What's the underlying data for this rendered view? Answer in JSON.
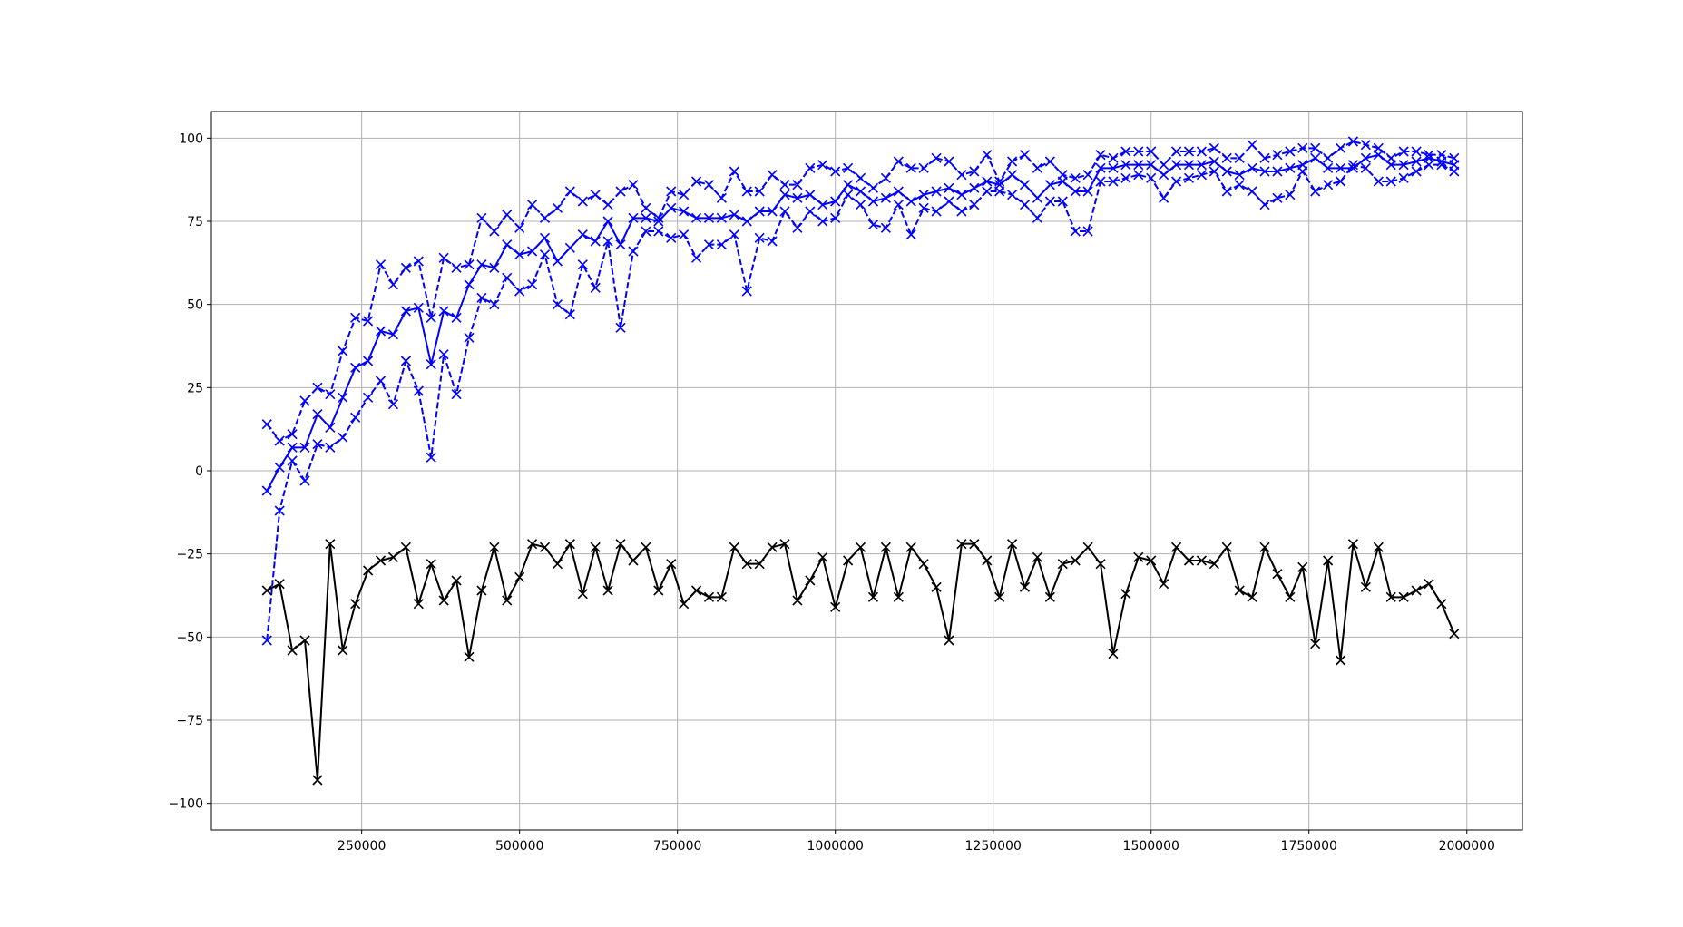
{
  "chart_data": {
    "type": "line",
    "title": "",
    "xlabel": "",
    "ylabel": "",
    "xlim": [
      12000,
      2088000
    ],
    "ylim": [
      -108,
      108
    ],
    "xticks": [
      250000,
      500000,
      750000,
      1000000,
      1250000,
      1500000,
      1750000,
      2000000
    ],
    "yticks": [
      -100,
      -75,
      -50,
      -25,
      0,
      25,
      50,
      75,
      100
    ],
    "grid": true,
    "marker": "x",
    "x": [
      100000,
      120000,
      140000,
      160000,
      180000,
      200000,
      220000,
      240000,
      260000,
      280000,
      300000,
      320000,
      340000,
      360000,
      380000,
      400000,
      420000,
      440000,
      460000,
      480000,
      500000,
      520000,
      540000,
      560000,
      580000,
      600000,
      620000,
      640000,
      660000,
      680000,
      700000,
      720000,
      740000,
      760000,
      780000,
      800000,
      820000,
      840000,
      860000,
      880000,
      900000,
      920000,
      940000,
      960000,
      980000,
      1000000,
      1020000,
      1040000,
      1060000,
      1080000,
      1100000,
      1120000,
      1140000,
      1160000,
      1180000,
      1200000,
      1220000,
      1240000,
      1260000,
      1280000,
      1300000,
      1320000,
      1340000,
      1360000,
      1380000,
      1400000,
      1420000,
      1440000,
      1460000,
      1480000,
      1500000,
      1520000,
      1540000,
      1560000,
      1580000,
      1600000,
      1620000,
      1640000,
      1660000,
      1680000,
      1700000,
      1720000,
      1740000,
      1760000,
      1780000,
      1800000,
      1820000,
      1840000,
      1860000,
      1880000,
      1900000,
      1920000,
      1940000,
      1960000,
      1980000
    ],
    "series": [
      {
        "color": "#0000ff",
        "linestyle": "dashed",
        "values": [
          14,
          9,
          11,
          21,
          25,
          23,
          36,
          46,
          45,
          62,
          56,
          61,
          63,
          46,
          64,
          61,
          62,
          76,
          72,
          77,
          73,
          80,
          76,
          79,
          84,
          81,
          83,
          80,
          84,
          86,
          79,
          76,
          84,
          83,
          87,
          86,
          82,
          90,
          84,
          84,
          89,
          86,
          86,
          91,
          92,
          90,
          91,
          88,
          85,
          88,
          93,
          91,
          91,
          94,
          93,
          89,
          90,
          95,
          87,
          93,
          95,
          91,
          93,
          89,
          88,
          89,
          95,
          94,
          96,
          96,
          96,
          92,
          96,
          96,
          96,
          97,
          94,
          94,
          98,
          94,
          95,
          96,
          97,
          97,
          94,
          97,
          99,
          98,
          97,
          94,
          96,
          96,
          95,
          95,
          94
        ]
      },
      {
        "color": "#0000ff",
        "linestyle": "solid",
        "values": [
          -6,
          1,
          7,
          7,
          17,
          13,
          22,
          31,
          33,
          42,
          41,
          48,
          49,
          32,
          48,
          46,
          56,
          62,
          61,
          68,
          65,
          66,
          70,
          63,
          67,
          71,
          69,
          75,
          68,
          76,
          76,
          75,
          79,
          78,
          76,
          76,
          76,
          77,
          75,
          78,
          78,
          83,
          82,
          83,
          80,
          81,
          86,
          84,
          81,
          82,
          84,
          81,
          83,
          84,
          85,
          83,
          85,
          87,
          86,
          89,
          86,
          82,
          86,
          87,
          84,
          84,
          91,
          91,
          92,
          92,
          92,
          89,
          92,
          92,
          92,
          93,
          90,
          89,
          91,
          90,
          90,
          91,
          92,
          94,
          91,
          91,
          91,
          94,
          95,
          92,
          92,
          93,
          94,
          93,
          92
        ]
      },
      {
        "color": "#0000ff",
        "linestyle": "dashed",
        "values": [
          -51,
          -12,
          3,
          -3,
          8,
          7,
          10,
          16,
          22,
          27,
          20,
          33,
          24,
          4,
          35,
          23,
          40,
          52,
          50,
          58,
          54,
          56,
          65,
          50,
          47,
          62,
          55,
          69,
          43,
          66,
          72,
          72,
          70,
          71,
          64,
          68,
          68,
          71,
          54,
          70,
          69,
          78,
          73,
          78,
          75,
          76,
          83,
          80,
          74,
          73,
          80,
          71,
          79,
          78,
          81,
          78,
          80,
          84,
          84,
          83,
          80,
          76,
          81,
          81,
          72,
          72,
          87,
          87,
          88,
          89,
          88,
          82,
          87,
          88,
          89,
          90,
          84,
          86,
          84,
          80,
          82,
          83,
          90,
          84,
          86,
          87,
          92,
          91,
          87,
          87,
          88,
          90,
          92,
          92,
          90
        ]
      },
      {
        "color": "#000000",
        "linestyle": "solid",
        "values": [
          -36,
          -34,
          -54,
          -51,
          -93,
          -22,
          -54,
          -40,
          -30,
          -27,
          -26,
          -23,
          -40,
          -28,
          -39,
          -33,
          -56,
          -36,
          -23,
          -39,
          -32,
          -22,
          -23,
          -28,
          -22,
          -37,
          -23,
          -36,
          -22,
          -27,
          -23,
          -36,
          -28,
          -40,
          -36,
          -38,
          -38,
          -23,
          -28,
          -28,
          -23,
          -22,
          -39,
          -33,
          -26,
          -41,
          -27,
          -23,
          -38,
          -23,
          -38,
          -23,
          -28,
          -35,
          -51,
          -22,
          -22,
          -27,
          -38,
          -22,
          -35,
          -26,
          -38,
          -28,
          -27,
          -23,
          -28,
          -55,
          -37,
          -26,
          -27,
          -34,
          -23,
          -27,
          -27,
          -28,
          -23,
          -36,
          -38,
          -23,
          -31,
          -38,
          -29,
          -52,
          -27,
          -57,
          -22,
          -35,
          -23,
          -38,
          -38,
          -36,
          -34,
          -40,
          -49
        ]
      }
    ]
  }
}
